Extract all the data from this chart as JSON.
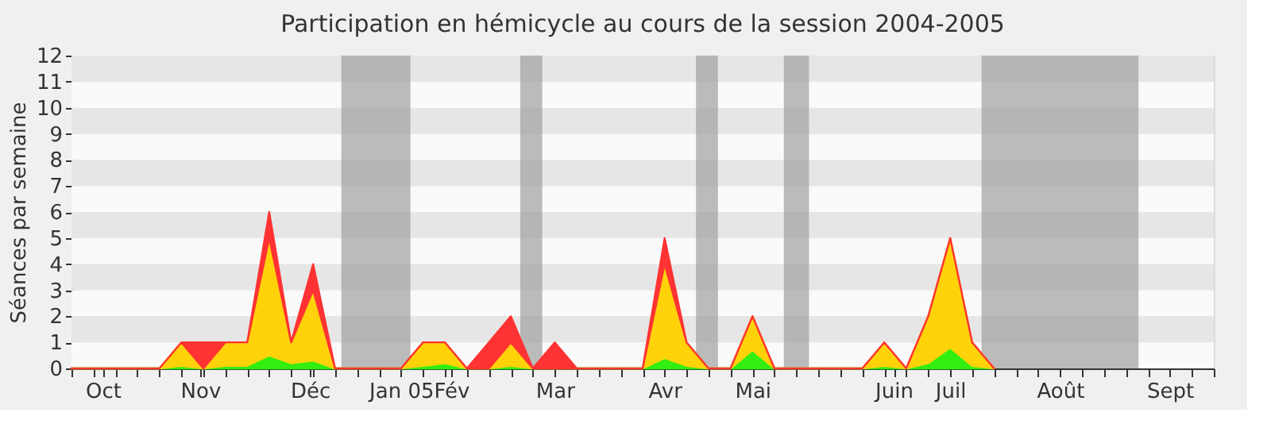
{
  "chart_data": {
    "type": "area",
    "title": "Participation en hémicycle au cours de la session 2004-2005",
    "ylabel": "Séances par semaine",
    "stacked": true,
    "x": [
      "2004-10-04",
      "2004-10-11",
      "2004-10-18",
      "2004-10-25",
      "2004-11-01",
      "2004-11-08",
      "2004-11-15",
      "2004-11-22",
      "2004-11-29",
      "2004-12-06",
      "2004-12-13",
      "2004-12-20",
      "2004-12-27",
      "2005-01-03",
      "2005-01-10",
      "2005-01-17",
      "2005-01-24",
      "2005-01-31",
      "2005-02-07",
      "2005-02-14",
      "2005-02-21",
      "2005-02-28",
      "2005-03-07",
      "2005-03-14",
      "2005-03-21",
      "2005-03-28",
      "2005-04-04",
      "2005-04-11",
      "2005-04-18",
      "2005-04-25",
      "2005-05-02",
      "2005-05-09",
      "2005-05-16",
      "2005-05-23",
      "2005-05-30",
      "2005-06-06",
      "2005-06-13",
      "2005-06-20",
      "2005-06-27",
      "2005-07-04",
      "2005-07-11",
      "2005-07-18",
      "2005-07-25"
    ],
    "series": [
      {
        "color": "#33ee11",
        "values": [
          0,
          0,
          0,
          0,
          0,
          0.1,
          0,
          0.1,
          0.1,
          0.5,
          0.2,
          0.3,
          0,
          0,
          0,
          0,
          0.1,
          0.2,
          0,
          0,
          0.1,
          0,
          0,
          0,
          0,
          0,
          0,
          0.4,
          0.1,
          0,
          0,
          0.7,
          0,
          0,
          0,
          0,
          0,
          0.1,
          0,
          0.2,
          0.8,
          0.1,
          0
        ]
      },
      {
        "color": "#ffd20a",
        "values": [
          0,
          0,
          0,
          0,
          0,
          0.9,
          0,
          0.9,
          0.9,
          4.5,
          0.8,
          2.7,
          0,
          0,
          0,
          0,
          0.9,
          0.8,
          0,
          0,
          0.9,
          0,
          0,
          0,
          0,
          0,
          0,
          3.6,
          0.9,
          0,
          0,
          1.3,
          0,
          0,
          0,
          0,
          0,
          0.9,
          0,
          1.8,
          4.2,
          0.9,
          0
        ]
      },
      {
        "color": "#ff3333",
        "values": [
          0,
          0,
          0,
          0,
          0,
          0,
          1,
          0,
          0,
          1,
          0,
          1,
          0,
          0,
          0,
          0,
          0,
          0,
          0,
          1,
          1,
          0,
          1,
          0,
          0,
          0,
          0,
          1,
          0,
          0,
          0,
          0,
          0,
          0,
          0,
          0,
          0,
          0,
          0,
          0,
          0,
          0,
          0
        ]
      }
    ],
    "xlim": [
      "2004-10-04",
      "2005-10-03"
    ],
    "xticks": [
      {
        "value": "2004-10-04",
        "label": null
      },
      {
        "value": "2004-10-11",
        "label": null
      },
      {
        "value": "2004-10-14",
        "label": "Oct"
      },
      {
        "value": "2004-10-18",
        "label": null
      },
      {
        "value": "2004-10-25",
        "label": null
      },
      {
        "value": "2004-11-01",
        "label": null
      },
      {
        "value": "2004-11-08",
        "label": null
      },
      {
        "value": "2004-11-14",
        "label": "Nov"
      },
      {
        "value": "2004-11-15",
        "label": null
      },
      {
        "value": "2004-11-22",
        "label": null
      },
      {
        "value": "2004-11-29",
        "label": null
      },
      {
        "value": "2004-12-06",
        "label": null
      },
      {
        "value": "2004-12-13",
        "label": null
      },
      {
        "value": "2004-12-19",
        "label": "Déc"
      },
      {
        "value": "2004-12-20",
        "label": null
      },
      {
        "value": "2004-12-27",
        "label": null
      },
      {
        "value": "2005-01-03",
        "label": null
      },
      {
        "value": "2005-01-10",
        "label": null
      },
      {
        "value": "2005-01-17",
        "label": "Jan 05"
      },
      {
        "value": "2005-01-24",
        "label": null
      },
      {
        "value": "2005-01-31",
        "label": null
      },
      {
        "value": "2005-02-02",
        "label": "Fév"
      },
      {
        "value": "2005-02-07",
        "label": null
      },
      {
        "value": "2005-02-14",
        "label": null
      },
      {
        "value": "2005-02-21",
        "label": null
      },
      {
        "value": "2005-02-28",
        "label": null
      },
      {
        "value": "2005-03-07",
        "label": "Mar"
      },
      {
        "value": "2005-03-14",
        "label": null
      },
      {
        "value": "2005-03-21",
        "label": null
      },
      {
        "value": "2005-03-28",
        "label": null
      },
      {
        "value": "2005-04-04",
        "label": null
      },
      {
        "value": "2005-04-11",
        "label": "Avr"
      },
      {
        "value": "2005-04-18",
        "label": null
      },
      {
        "value": "2005-04-25",
        "label": null
      },
      {
        "value": "2005-05-02",
        "label": null
      },
      {
        "value": "2005-05-09",
        "label": "Mai"
      },
      {
        "value": "2005-05-16",
        "label": null
      },
      {
        "value": "2005-05-23",
        "label": null
      },
      {
        "value": "2005-05-30",
        "label": null
      },
      {
        "value": "2005-06-06",
        "label": null
      },
      {
        "value": "2005-06-13",
        "label": null
      },
      {
        "value": "2005-06-20",
        "label": null
      },
      {
        "value": "2005-06-23",
        "label": "Juin"
      },
      {
        "value": "2005-06-27",
        "label": null
      },
      {
        "value": "2005-07-04",
        "label": null
      },
      {
        "value": "2005-07-11",
        "label": "Juil"
      },
      {
        "value": "2005-07-18",
        "label": null
      },
      {
        "value": "2005-07-25",
        "label": null
      },
      {
        "value": "2005-08-01",
        "label": null
      },
      {
        "value": "2005-08-08",
        "label": null
      },
      {
        "value": "2005-08-15",
        "label": "Août"
      },
      {
        "value": "2005-08-22",
        "label": null
      },
      {
        "value": "2005-08-29",
        "label": null
      },
      {
        "value": "2005-09-05",
        "label": null
      },
      {
        "value": "2005-09-12",
        "label": null
      },
      {
        "value": "2005-09-19",
        "label": "Sept"
      },
      {
        "value": "2005-09-26",
        "label": null
      },
      {
        "value": "2005-10-03",
        "label": null
      }
    ],
    "ylim": [
      0,
      12
    ],
    "yticks": [
      0,
      1,
      2,
      3,
      4,
      5,
      6,
      7,
      8,
      9,
      10,
      11,
      12
    ],
    "grid": "y",
    "bands": [
      {
        "axis": "x",
        "from": "2004-12-29",
        "to": "2005-01-20",
        "color": "#a0a0a0"
      },
      {
        "axis": "x",
        "from": "2005-02-24",
        "to": "2005-03-03",
        "color": "#a0a0a0"
      },
      {
        "axis": "x",
        "from": "2005-04-21",
        "to": "2005-04-28",
        "color": "#a0a0a0"
      },
      {
        "axis": "x",
        "from": "2005-05-19",
        "to": "2005-05-27",
        "color": "#a0a0a0"
      },
      {
        "axis": "x",
        "from": "2005-07-21",
        "to": "2005-09-09",
        "color": "#a0a0a0"
      }
    ]
  }
}
